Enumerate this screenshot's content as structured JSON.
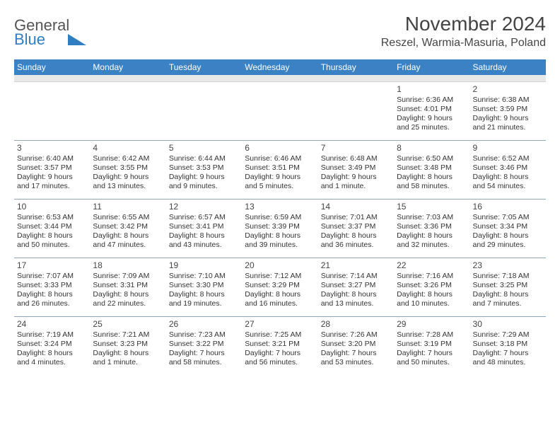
{
  "logo": {
    "line1": "General",
    "line2": "Blue"
  },
  "title": "November 2024",
  "location": "Reszel, Warmia-Masuria, Poland",
  "header_bg": "#3b82c4",
  "day_names": [
    "Sunday",
    "Monday",
    "Tuesday",
    "Wednesday",
    "Thursday",
    "Friday",
    "Saturday"
  ],
  "weeks": [
    [
      {},
      {},
      {},
      {},
      {},
      {
        "day": "1",
        "sunrise": "Sunrise: 6:36 AM",
        "sunset": "Sunset: 4:01 PM",
        "daylight1": "Daylight: 9 hours",
        "daylight2": "and 25 minutes."
      },
      {
        "day": "2",
        "sunrise": "Sunrise: 6:38 AM",
        "sunset": "Sunset: 3:59 PM",
        "daylight1": "Daylight: 9 hours",
        "daylight2": "and 21 minutes."
      }
    ],
    [
      {
        "day": "3",
        "sunrise": "Sunrise: 6:40 AM",
        "sunset": "Sunset: 3:57 PM",
        "daylight1": "Daylight: 9 hours",
        "daylight2": "and 17 minutes."
      },
      {
        "day": "4",
        "sunrise": "Sunrise: 6:42 AM",
        "sunset": "Sunset: 3:55 PM",
        "daylight1": "Daylight: 9 hours",
        "daylight2": "and 13 minutes."
      },
      {
        "day": "5",
        "sunrise": "Sunrise: 6:44 AM",
        "sunset": "Sunset: 3:53 PM",
        "daylight1": "Daylight: 9 hours",
        "daylight2": "and 9 minutes."
      },
      {
        "day": "6",
        "sunrise": "Sunrise: 6:46 AM",
        "sunset": "Sunset: 3:51 PM",
        "daylight1": "Daylight: 9 hours",
        "daylight2": "and 5 minutes."
      },
      {
        "day": "7",
        "sunrise": "Sunrise: 6:48 AM",
        "sunset": "Sunset: 3:49 PM",
        "daylight1": "Daylight: 9 hours",
        "daylight2": "and 1 minute."
      },
      {
        "day": "8",
        "sunrise": "Sunrise: 6:50 AM",
        "sunset": "Sunset: 3:48 PM",
        "daylight1": "Daylight: 8 hours",
        "daylight2": "and 58 minutes."
      },
      {
        "day": "9",
        "sunrise": "Sunrise: 6:52 AM",
        "sunset": "Sunset: 3:46 PM",
        "daylight1": "Daylight: 8 hours",
        "daylight2": "and 54 minutes."
      }
    ],
    [
      {
        "day": "10",
        "sunrise": "Sunrise: 6:53 AM",
        "sunset": "Sunset: 3:44 PM",
        "daylight1": "Daylight: 8 hours",
        "daylight2": "and 50 minutes."
      },
      {
        "day": "11",
        "sunrise": "Sunrise: 6:55 AM",
        "sunset": "Sunset: 3:42 PM",
        "daylight1": "Daylight: 8 hours",
        "daylight2": "and 47 minutes."
      },
      {
        "day": "12",
        "sunrise": "Sunrise: 6:57 AM",
        "sunset": "Sunset: 3:41 PM",
        "daylight1": "Daylight: 8 hours",
        "daylight2": "and 43 minutes."
      },
      {
        "day": "13",
        "sunrise": "Sunrise: 6:59 AM",
        "sunset": "Sunset: 3:39 PM",
        "daylight1": "Daylight: 8 hours",
        "daylight2": "and 39 minutes."
      },
      {
        "day": "14",
        "sunrise": "Sunrise: 7:01 AM",
        "sunset": "Sunset: 3:37 PM",
        "daylight1": "Daylight: 8 hours",
        "daylight2": "and 36 minutes."
      },
      {
        "day": "15",
        "sunrise": "Sunrise: 7:03 AM",
        "sunset": "Sunset: 3:36 PM",
        "daylight1": "Daylight: 8 hours",
        "daylight2": "and 32 minutes."
      },
      {
        "day": "16",
        "sunrise": "Sunrise: 7:05 AM",
        "sunset": "Sunset: 3:34 PM",
        "daylight1": "Daylight: 8 hours",
        "daylight2": "and 29 minutes."
      }
    ],
    [
      {
        "day": "17",
        "sunrise": "Sunrise: 7:07 AM",
        "sunset": "Sunset: 3:33 PM",
        "daylight1": "Daylight: 8 hours",
        "daylight2": "and 26 minutes."
      },
      {
        "day": "18",
        "sunrise": "Sunrise: 7:09 AM",
        "sunset": "Sunset: 3:31 PM",
        "daylight1": "Daylight: 8 hours",
        "daylight2": "and 22 minutes."
      },
      {
        "day": "19",
        "sunrise": "Sunrise: 7:10 AM",
        "sunset": "Sunset: 3:30 PM",
        "daylight1": "Daylight: 8 hours",
        "daylight2": "and 19 minutes."
      },
      {
        "day": "20",
        "sunrise": "Sunrise: 7:12 AM",
        "sunset": "Sunset: 3:29 PM",
        "daylight1": "Daylight: 8 hours",
        "daylight2": "and 16 minutes."
      },
      {
        "day": "21",
        "sunrise": "Sunrise: 7:14 AM",
        "sunset": "Sunset: 3:27 PM",
        "daylight1": "Daylight: 8 hours",
        "daylight2": "and 13 minutes."
      },
      {
        "day": "22",
        "sunrise": "Sunrise: 7:16 AM",
        "sunset": "Sunset: 3:26 PM",
        "daylight1": "Daylight: 8 hours",
        "daylight2": "and 10 minutes."
      },
      {
        "day": "23",
        "sunrise": "Sunrise: 7:18 AM",
        "sunset": "Sunset: 3:25 PM",
        "daylight1": "Daylight: 8 hours",
        "daylight2": "and 7 minutes."
      }
    ],
    [
      {
        "day": "24",
        "sunrise": "Sunrise: 7:19 AM",
        "sunset": "Sunset: 3:24 PM",
        "daylight1": "Daylight: 8 hours",
        "daylight2": "and 4 minutes."
      },
      {
        "day": "25",
        "sunrise": "Sunrise: 7:21 AM",
        "sunset": "Sunset: 3:23 PM",
        "daylight1": "Daylight: 8 hours",
        "daylight2": "and 1 minute."
      },
      {
        "day": "26",
        "sunrise": "Sunrise: 7:23 AM",
        "sunset": "Sunset: 3:22 PM",
        "daylight1": "Daylight: 7 hours",
        "daylight2": "and 58 minutes."
      },
      {
        "day": "27",
        "sunrise": "Sunrise: 7:25 AM",
        "sunset": "Sunset: 3:21 PM",
        "daylight1": "Daylight: 7 hours",
        "daylight2": "and 56 minutes."
      },
      {
        "day": "28",
        "sunrise": "Sunrise: 7:26 AM",
        "sunset": "Sunset: 3:20 PM",
        "daylight1": "Daylight: 7 hours",
        "daylight2": "and 53 minutes."
      },
      {
        "day": "29",
        "sunrise": "Sunrise: 7:28 AM",
        "sunset": "Sunset: 3:19 PM",
        "daylight1": "Daylight: 7 hours",
        "daylight2": "and 50 minutes."
      },
      {
        "day": "30",
        "sunrise": "Sunrise: 7:29 AM",
        "sunset": "Sunset: 3:18 PM",
        "daylight1": "Daylight: 7 hours",
        "daylight2": "and 48 minutes."
      }
    ]
  ]
}
